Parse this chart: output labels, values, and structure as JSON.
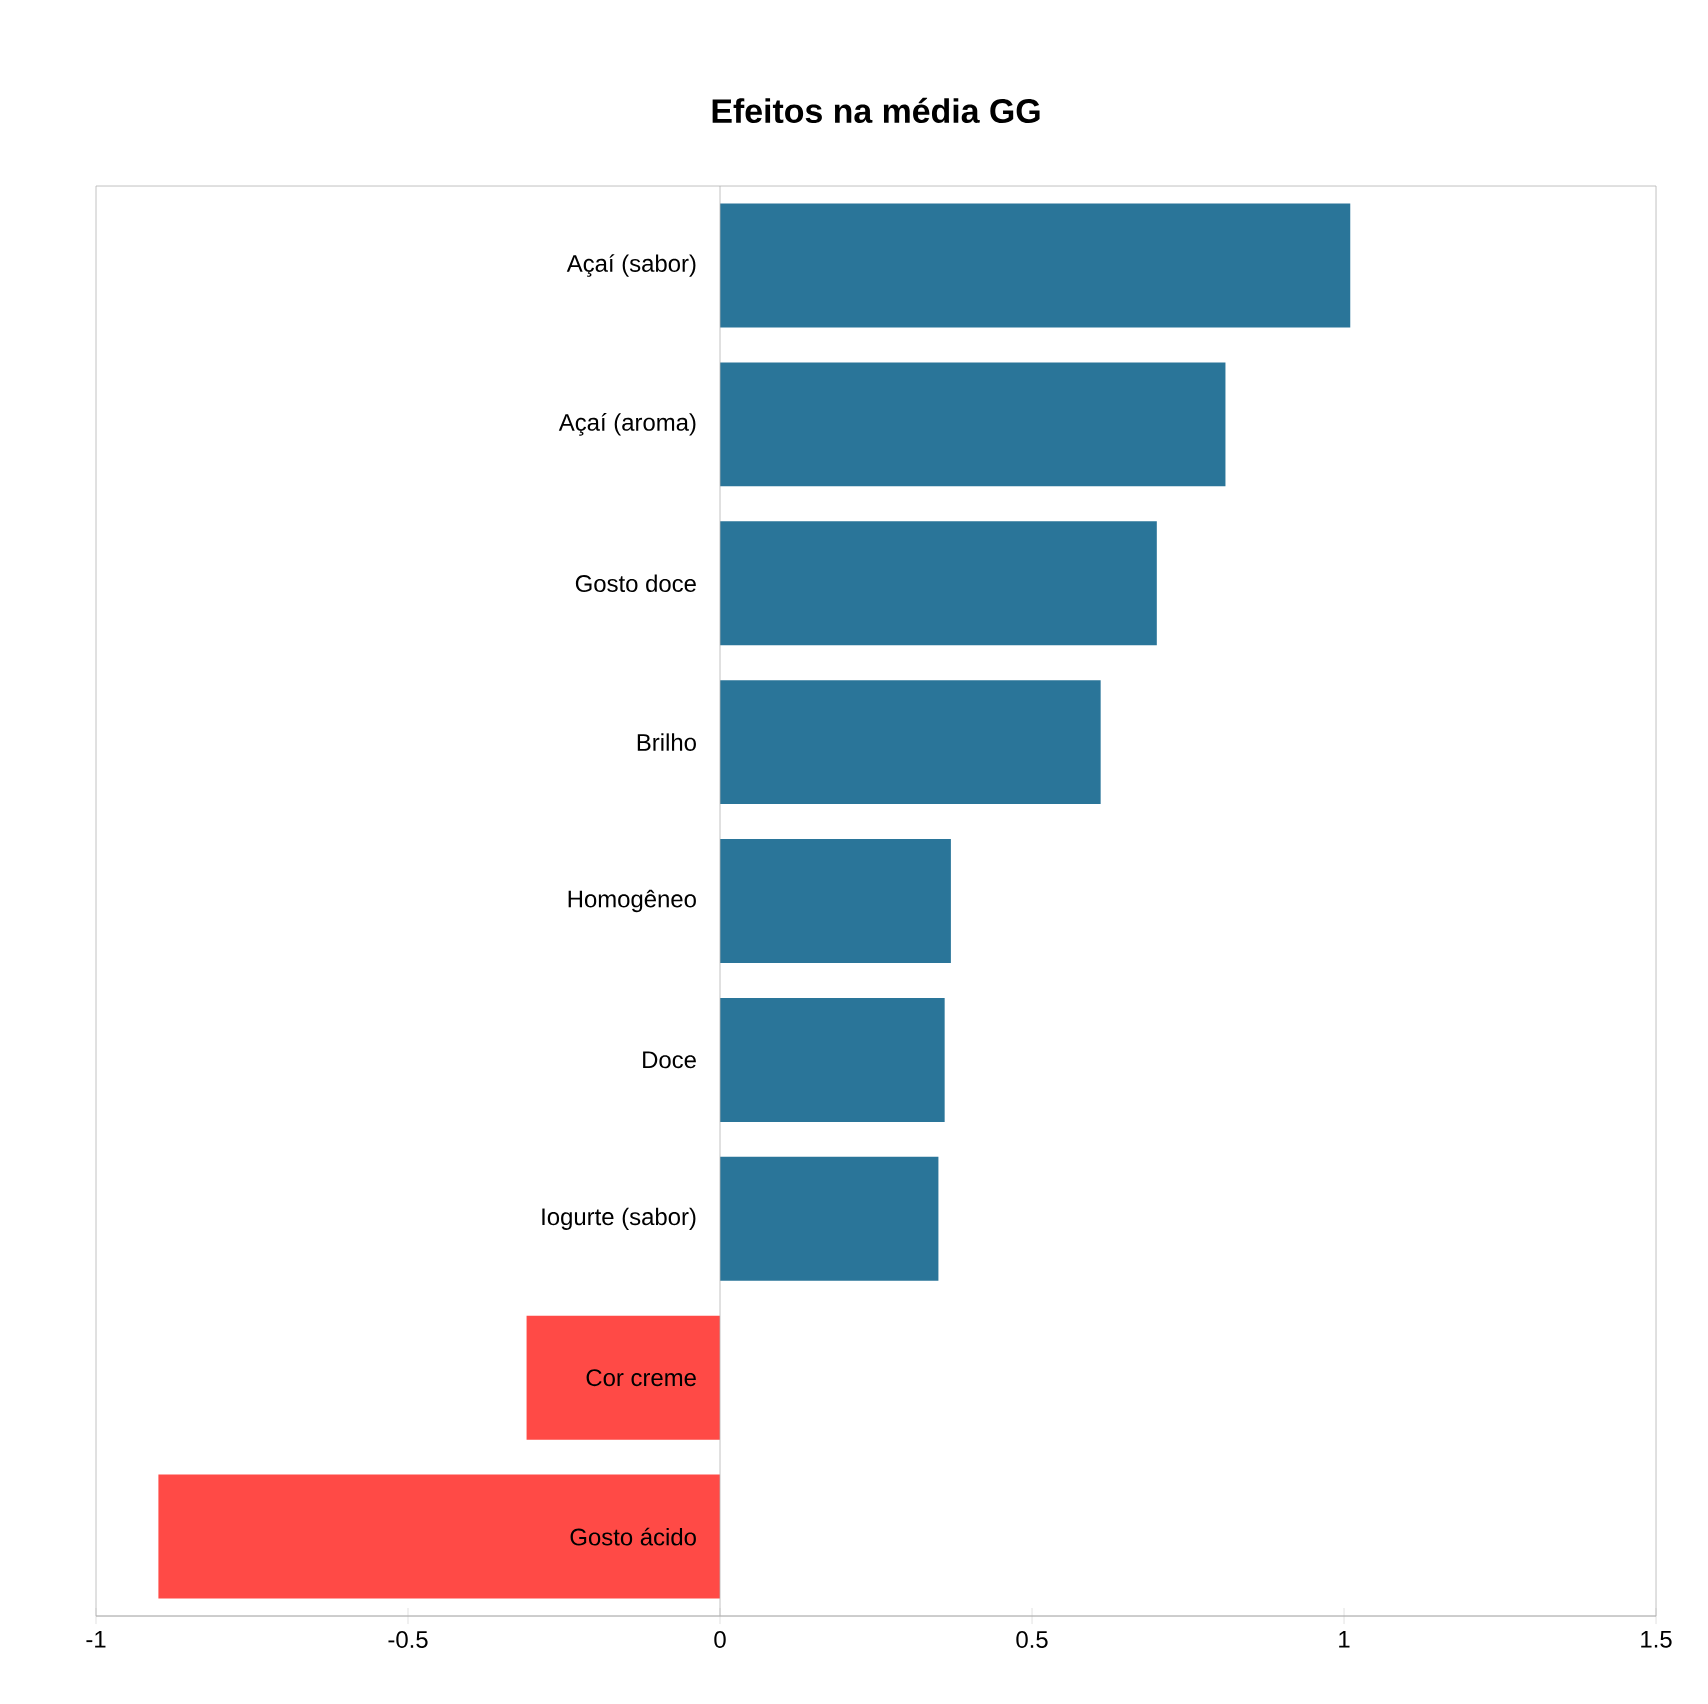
{
  "chart_data": {
    "type": "bar",
    "orientation": "horizontal",
    "title": "Efeitos na média GG",
    "categories": [
      "Açaí (sabor)",
      "Açaí (aroma)",
      "Gosto doce",
      "Brilho",
      "Homogêneo",
      "Doce",
      "Iogurte (sabor)",
      "Cor creme",
      "Gosto ácido"
    ],
    "values": [
      1.01,
      0.81,
      0.7,
      0.61,
      0.37,
      0.36,
      0.35,
      -0.31,
      -0.9
    ],
    "colors": [
      "#2a7599",
      "#2a7599",
      "#2a7599",
      "#2a7599",
      "#2a7599",
      "#2a7599",
      "#2a7599",
      "#ff4a46",
      "#ff4a46"
    ],
    "xlim": [
      -1,
      1.5
    ],
    "xticks": [
      -1,
      -0.5,
      0,
      0.5,
      1,
      1.5
    ]
  }
}
